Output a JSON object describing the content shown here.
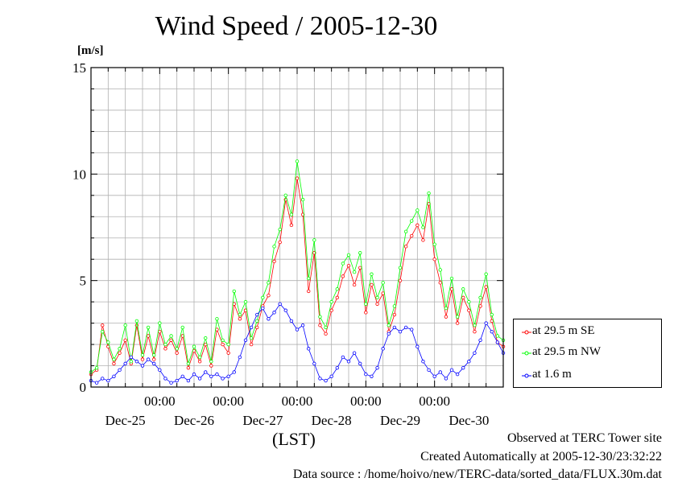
{
  "chart_data": {
    "type": "line",
    "title": "Wind Speed / 2005-12-30",
    "ylabel": "[m/s]",
    "xlabel": "(LST)",
    "ylim": [
      0,
      15
    ],
    "y_ticks": [
      "0",
      "5",
      "10",
      "15"
    ],
    "x_tick_time_labels": [
      "00:00",
      "00:00",
      "00:00",
      "00:00",
      "00:00"
    ],
    "x_day_labels": [
      "Dec-25",
      "Dec-26",
      "Dec-27",
      "Dec-28",
      "Dec-29",
      "Dec-30"
    ],
    "x_range_hours": [
      0,
      144
    ],
    "grid": true,
    "legend_position": "right",
    "series": [
      {
        "name": "at 29.5 m SE",
        "color": "#ff0000",
        "points": [
          [
            0,
            0.6
          ],
          [
            2,
            0.8
          ],
          [
            4,
            2.9
          ],
          [
            6,
            1.9
          ],
          [
            8,
            1.1
          ],
          [
            10,
            1.6
          ],
          [
            12,
            2.2
          ],
          [
            14,
            1.1
          ],
          [
            16,
            2.9
          ],
          [
            18,
            1.3
          ],
          [
            20,
            2.4
          ],
          [
            22,
            1.3
          ],
          [
            24,
            2.6
          ],
          [
            26,
            1.8
          ],
          [
            28,
            2.2
          ],
          [
            30,
            1.6
          ],
          [
            32,
            2.4
          ],
          [
            34,
            0.9
          ],
          [
            36,
            1.7
          ],
          [
            38,
            1.2
          ],
          [
            40,
            2.0
          ],
          [
            42,
            1.0
          ],
          [
            44,
            2.7
          ],
          [
            46,
            2.0
          ],
          [
            48,
            1.6
          ],
          [
            50,
            3.9
          ],
          [
            52,
            3.2
          ],
          [
            54,
            3.6
          ],
          [
            56,
            2.0
          ],
          [
            58,
            2.8
          ],
          [
            60,
            3.8
          ],
          [
            62,
            4.3
          ],
          [
            64,
            5.9
          ],
          [
            66,
            6.8
          ],
          [
            68,
            8.8
          ],
          [
            70,
            7.6
          ],
          [
            72,
            9.8
          ],
          [
            74,
            8.1
          ],
          [
            76,
            4.5
          ],
          [
            78,
            6.3
          ],
          [
            80,
            2.9
          ],
          [
            82,
            2.5
          ],
          [
            84,
            3.6
          ],
          [
            86,
            4.2
          ],
          [
            88,
            5.2
          ],
          [
            90,
            5.7
          ],
          [
            92,
            4.8
          ],
          [
            94,
            5.6
          ],
          [
            96,
            3.5
          ],
          [
            98,
            4.8
          ],
          [
            100,
            3.9
          ],
          [
            102,
            4.4
          ],
          [
            104,
            2.6
          ],
          [
            106,
            3.4
          ],
          [
            108,
            5.0
          ],
          [
            110,
            6.6
          ],
          [
            112,
            7.1
          ],
          [
            114,
            7.6
          ],
          [
            116,
            6.9
          ],
          [
            118,
            8.6
          ],
          [
            120,
            6.0
          ],
          [
            122,
            4.9
          ],
          [
            124,
            3.3
          ],
          [
            126,
            4.6
          ],
          [
            128,
            3.0
          ],
          [
            130,
            4.2
          ],
          [
            132,
            3.6
          ],
          [
            134,
            2.6
          ],
          [
            136,
            3.8
          ],
          [
            138,
            4.7
          ],
          [
            140,
            3.1
          ],
          [
            142,
            2.1
          ],
          [
            144,
            1.9
          ]
        ]
      },
      {
        "name": "at 29.5 m NW",
        "color": "#00ff00",
        "points": [
          [
            0,
            0.7
          ],
          [
            2,
            0.9
          ],
          [
            4,
            2.6
          ],
          [
            6,
            2.1
          ],
          [
            8,
            1.3
          ],
          [
            10,
            1.8
          ],
          [
            12,
            2.9
          ],
          [
            14,
            1.2
          ],
          [
            16,
            3.1
          ],
          [
            18,
            1.5
          ],
          [
            20,
            2.8
          ],
          [
            22,
            1.5
          ],
          [
            24,
            3.0
          ],
          [
            26,
            2.0
          ],
          [
            28,
            2.4
          ],
          [
            30,
            1.8
          ],
          [
            32,
            2.8
          ],
          [
            34,
            1.1
          ],
          [
            36,
            1.9
          ],
          [
            38,
            1.4
          ],
          [
            40,
            2.3
          ],
          [
            42,
            1.2
          ],
          [
            44,
            3.2
          ],
          [
            46,
            2.2
          ],
          [
            48,
            2.0
          ],
          [
            50,
            4.5
          ],
          [
            52,
            3.4
          ],
          [
            54,
            4.0
          ],
          [
            56,
            2.3
          ],
          [
            58,
            3.1
          ],
          [
            60,
            4.2
          ],
          [
            62,
            4.9
          ],
          [
            64,
            6.6
          ],
          [
            66,
            7.4
          ],
          [
            68,
            9.0
          ],
          [
            70,
            8.1
          ],
          [
            72,
            10.6
          ],
          [
            74,
            8.8
          ],
          [
            76,
            5.1
          ],
          [
            78,
            6.9
          ],
          [
            80,
            3.3
          ],
          [
            82,
            2.8
          ],
          [
            84,
            4.0
          ],
          [
            86,
            4.6
          ],
          [
            88,
            5.8
          ],
          [
            90,
            6.2
          ],
          [
            92,
            5.4
          ],
          [
            94,
            6.3
          ],
          [
            96,
            3.9
          ],
          [
            98,
            5.3
          ],
          [
            100,
            4.2
          ],
          [
            102,
            4.9
          ],
          [
            104,
            2.9
          ],
          [
            106,
            3.8
          ],
          [
            108,
            5.6
          ],
          [
            110,
            7.3
          ],
          [
            112,
            7.8
          ],
          [
            114,
            8.3
          ],
          [
            116,
            7.5
          ],
          [
            118,
            9.1
          ],
          [
            120,
            6.7
          ],
          [
            122,
            5.5
          ],
          [
            124,
            3.7
          ],
          [
            126,
            5.1
          ],
          [
            128,
            3.3
          ],
          [
            130,
            4.6
          ],
          [
            132,
            4.0
          ],
          [
            134,
            2.9
          ],
          [
            136,
            4.2
          ],
          [
            138,
            5.3
          ],
          [
            140,
            3.4
          ],
          [
            142,
            2.4
          ],
          [
            144,
            2.2
          ]
        ]
      },
      {
        "name": "at 1.6 m",
        "color": "#0000ff",
        "points": [
          [
            0,
            0.3
          ],
          [
            2,
            0.2
          ],
          [
            4,
            0.4
          ],
          [
            6,
            0.3
          ],
          [
            8,
            0.5
          ],
          [
            10,
            0.8
          ],
          [
            12,
            1.1
          ],
          [
            14,
            1.4
          ],
          [
            16,
            1.2
          ],
          [
            18,
            1.0
          ],
          [
            20,
            1.3
          ],
          [
            22,
            1.1
          ],
          [
            24,
            0.8
          ],
          [
            26,
            0.4
          ],
          [
            28,
            0.2
          ],
          [
            30,
            0.3
          ],
          [
            32,
            0.5
          ],
          [
            34,
            0.3
          ],
          [
            36,
            0.6
          ],
          [
            38,
            0.4
          ],
          [
            40,
            0.7
          ],
          [
            42,
            0.5
          ],
          [
            44,
            0.6
          ],
          [
            46,
            0.4
          ],
          [
            48,
            0.5
          ],
          [
            50,
            0.7
          ],
          [
            52,
            1.4
          ],
          [
            54,
            2.2
          ],
          [
            56,
            2.8
          ],
          [
            58,
            3.4
          ],
          [
            60,
            3.7
          ],
          [
            62,
            3.2
          ],
          [
            64,
            3.5
          ],
          [
            66,
            3.9
          ],
          [
            68,
            3.6
          ],
          [
            70,
            3.1
          ],
          [
            72,
            2.7
          ],
          [
            74,
            2.9
          ],
          [
            76,
            1.8
          ],
          [
            78,
            1.1
          ],
          [
            80,
            0.4
          ],
          [
            82,
            0.3
          ],
          [
            84,
            0.5
          ],
          [
            86,
            0.9
          ],
          [
            88,
            1.4
          ],
          [
            90,
            1.2
          ],
          [
            92,
            1.6
          ],
          [
            94,
            1.1
          ],
          [
            96,
            0.6
          ],
          [
            98,
            0.5
          ],
          [
            100,
            0.9
          ],
          [
            102,
            1.8
          ],
          [
            104,
            2.5
          ],
          [
            106,
            2.8
          ],
          [
            108,
            2.6
          ],
          [
            110,
            2.8
          ],
          [
            112,
            2.7
          ],
          [
            114,
            1.9
          ],
          [
            116,
            1.2
          ],
          [
            118,
            0.8
          ],
          [
            120,
            0.5
          ],
          [
            122,
            0.7
          ],
          [
            124,
            0.4
          ],
          [
            126,
            0.8
          ],
          [
            128,
            0.6
          ],
          [
            130,
            0.9
          ],
          [
            132,
            1.2
          ],
          [
            134,
            1.6
          ],
          [
            136,
            2.2
          ],
          [
            138,
            3.0
          ],
          [
            140,
            2.6
          ],
          [
            142,
            2.1
          ],
          [
            144,
            1.6
          ]
        ]
      }
    ]
  },
  "title": "Wind Speed / 2005-12-30",
  "unit_label": "[m/s]",
  "x_axis_label": "(LST)",
  "footer": {
    "observed": "Observed at TERC Tower site",
    "created": "Created Automatically at 2005-12-30/23:32:22",
    "source": "Data source : /home/hoivo/new/TERC-data/sorted_data/FLUX.30m.dat"
  }
}
